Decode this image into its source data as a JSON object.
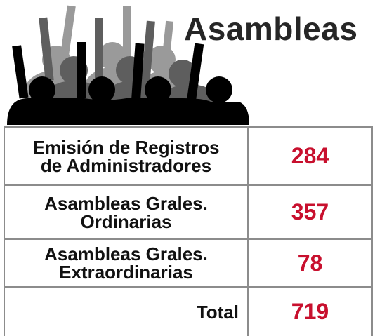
{
  "header": {
    "title": "Asambleas"
  },
  "table": {
    "rows": [
      {
        "label": [
          "Emisión de Registros",
          "de Administradores"
        ],
        "value": 284
      },
      {
        "label": [
          "Asambleas Grales.",
          "Ordinarias"
        ],
        "value": 357
      },
      {
        "label": [
          "Asambleas Grales.",
          "Extraordinarias"
        ],
        "value": 78
      },
      {
        "label": [
          "Total"
        ],
        "value": 719
      }
    ]
  }
}
